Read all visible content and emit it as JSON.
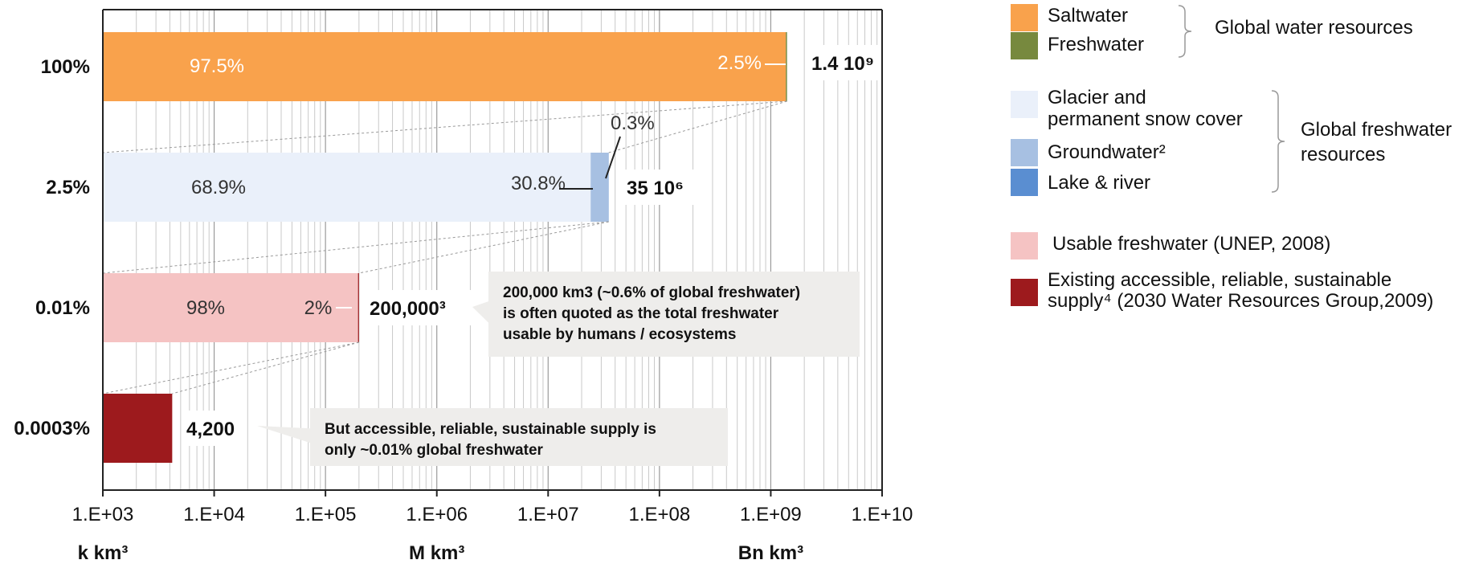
{
  "chart_data": {
    "type": "bar",
    "orientation": "horizontal",
    "xscale": "log",
    "xlim": [
      1000,
      10000000000
    ],
    "x_tick_labels": [
      "1.E+03",
      "1.E+04",
      "1.E+05",
      "1.E+06",
      "1.E+07",
      "1.E+08",
      "1.E+09",
      "1.E+10"
    ],
    "x_unit_labels": [
      {
        "label": "k km³",
        "at": 1000
      },
      {
        "label": "M km³",
        "at": 1000000
      },
      {
        "label": "Bn km³",
        "at": 1000000000
      }
    ],
    "rows": [
      {
        "category": "100%",
        "total_label": "1.4 10⁹",
        "total": 1400000000,
        "segments": [
          {
            "name": "Saltwater",
            "pct_label": "97.5%",
            "end": 1365000000
          },
          {
            "name": "Freshwater",
            "pct_label": "2.5%",
            "end": 1400000000
          }
        ]
      },
      {
        "category": "2.5%",
        "total_label": "35 10⁶",
        "total": 35000000,
        "segments": [
          {
            "name": "Glacier and permanent snow cover",
            "pct_label": "68.9%",
            "end": 24100000
          },
          {
            "name": "Groundwater²",
            "pct_label": "30.8%",
            "end": 34900000
          },
          {
            "name": "Lake & river",
            "pct_label": "0.3%",
            "end": 35000000
          }
        ]
      },
      {
        "category": "0.01%",
        "total_label": "200,000³",
        "total": 200000,
        "segments": [
          {
            "name": "Usable freshwater (UNEP, 2008)",
            "pct_label": "98%",
            "end": 196000
          },
          {
            "name": "Existing accessible, reliable, sustainable supply",
            "pct_label": "2%",
            "end": 200000
          }
        ]
      },
      {
        "category": "0.0003%",
        "total_label": "4,200",
        "total": 4200,
        "segments": [
          {
            "name": "Existing accessible, reliable, sustainable supply",
            "pct_label": "",
            "end": 4200
          }
        ]
      }
    ],
    "annotations": [
      "200,000 km3 (~0.6% of global freshwater) is often quoted as the total freshwater usable by humans / ecosystems",
      "But accessible, reliable, sustainable supply is only ~0.01% global freshwater"
    ],
    "grid": true
  },
  "legend": {
    "items": [
      {
        "label": "Saltwater",
        "color": "#F9A24C"
      },
      {
        "label": "Freshwater",
        "color": "#77893E"
      },
      {
        "label_lines": [
          "Glacier and",
          "permanent snow cover"
        ],
        "color": "#EAF0FA"
      },
      {
        "label": "Groundwater²",
        "color": "#A7C0E2"
      },
      {
        "label": "Lake & river",
        "color": "#5A8ED1"
      },
      {
        "label": "Usable freshwater (UNEP, 2008)",
        "color": "#F5C3C3"
      },
      {
        "label_lines": [
          "Existing accessible, reliable, sustainable",
          "supply⁴ (2030 Water Resources Group,2009)"
        ],
        "color": "#9D1A1D"
      }
    ],
    "groups": [
      {
        "label_lines": [
          "Global water resources"
        ]
      },
      {
        "label_lines": [
          "Global freshwater",
          "resources"
        ]
      }
    ]
  },
  "colors": {
    "saltwater": "#F9A24C",
    "freshwater": "#77893E",
    "glacier": "#EAF0FA",
    "groundwater": "#A7C0E2",
    "lake": "#5A8ED1",
    "usable": "#F5C3C3",
    "supply": "#9D1A1D",
    "callout_bg": "#EEEDEB"
  }
}
